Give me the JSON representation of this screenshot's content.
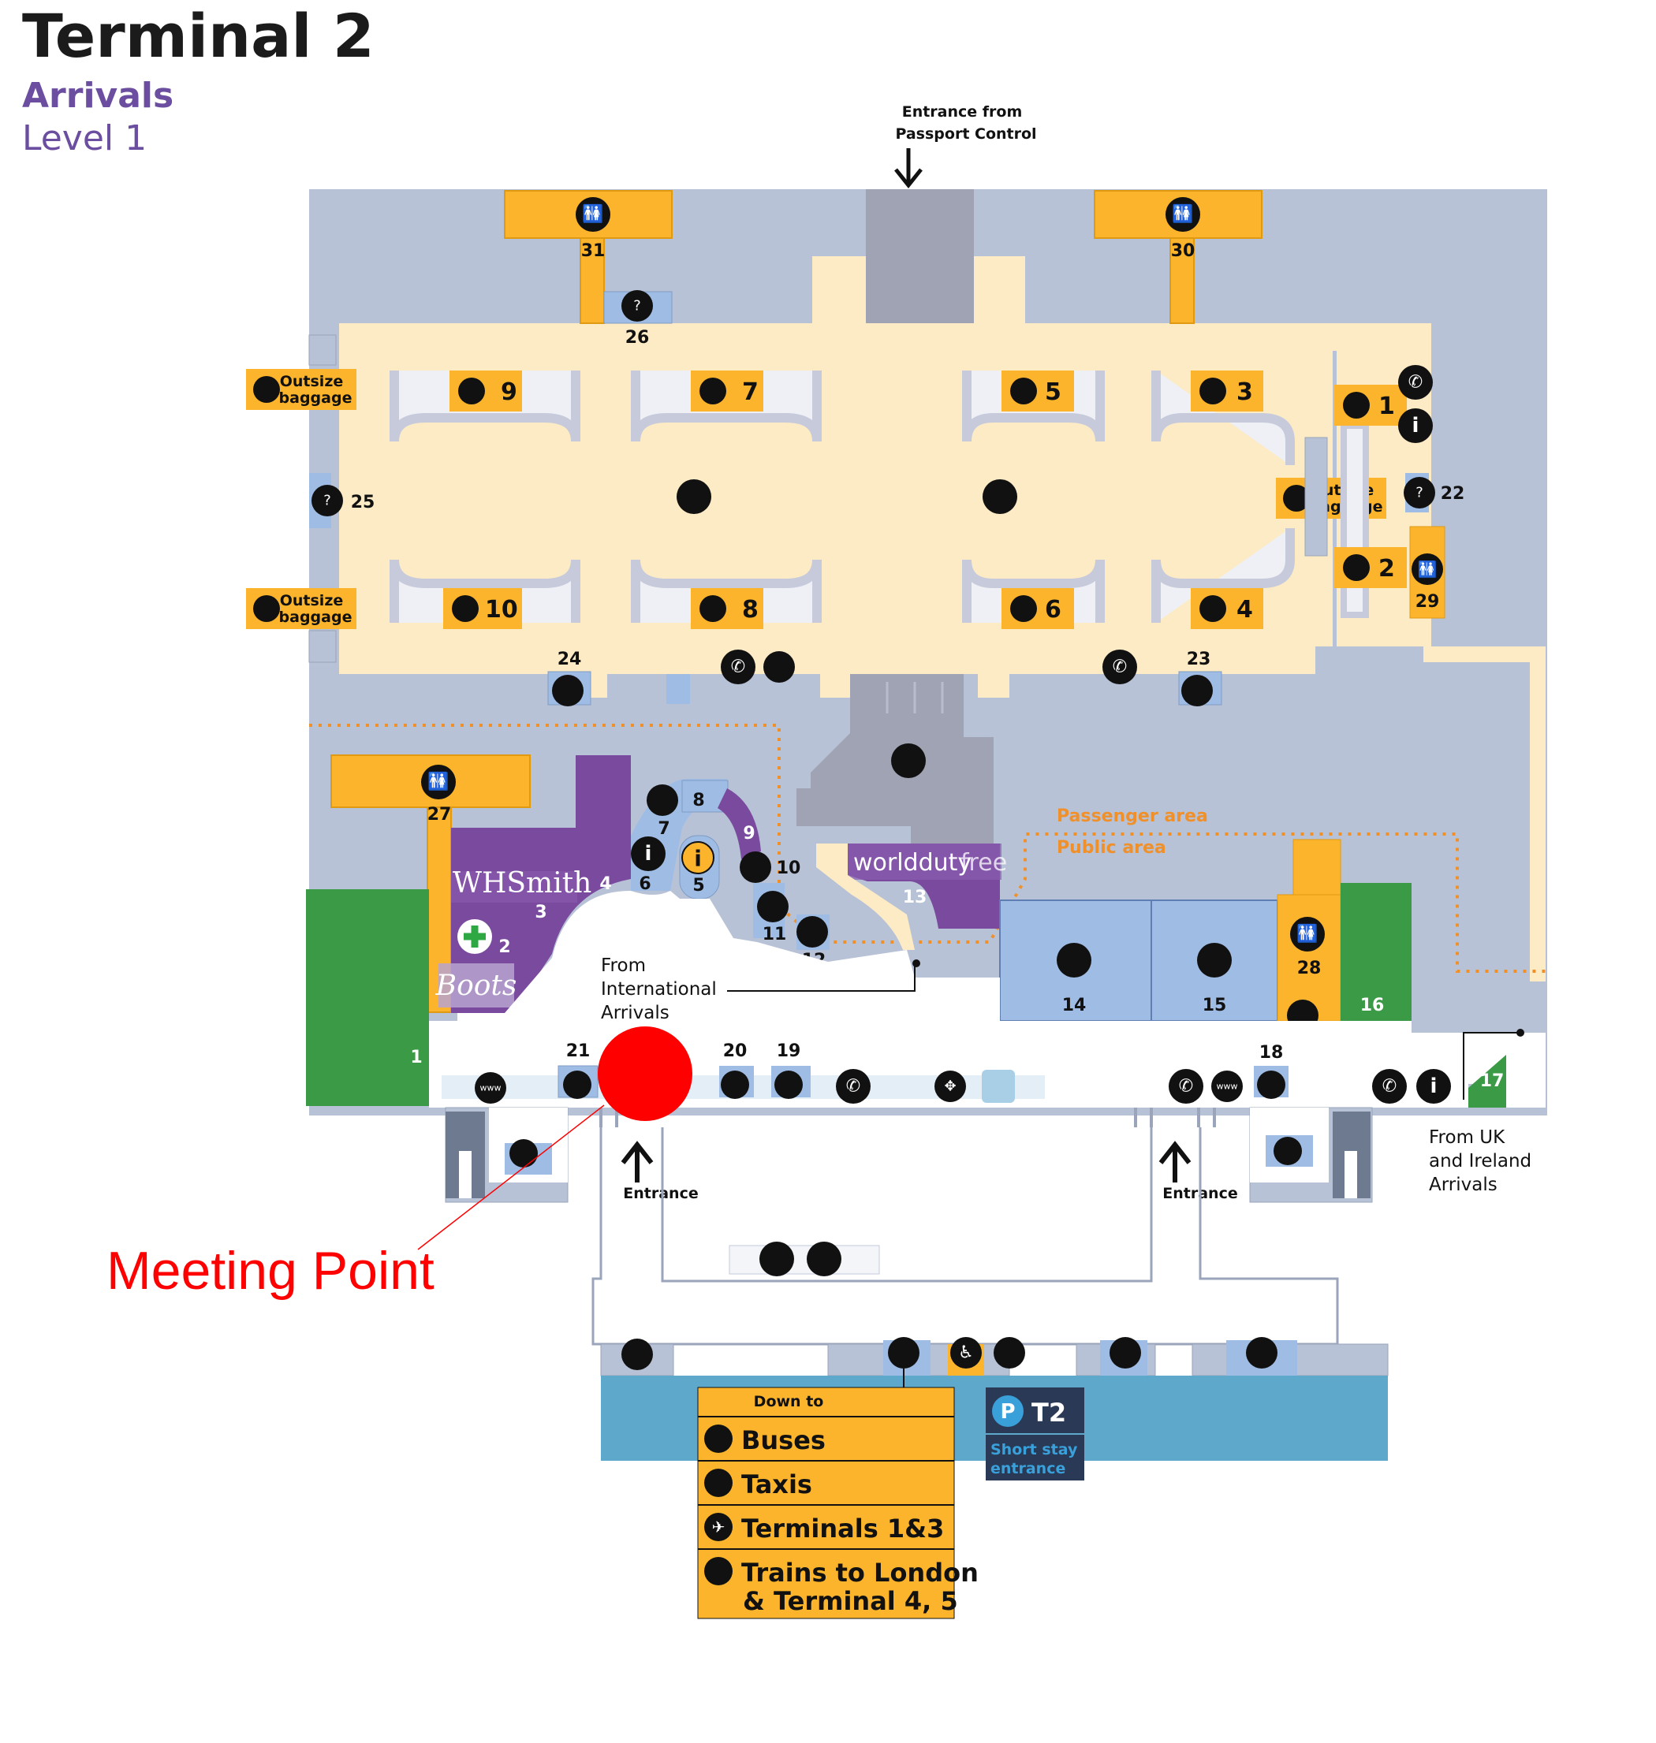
{
  "title": "Terminal 2",
  "subtitle": "Arrivals",
  "level": "Level 1",
  "entrance_top": [
    "Entrance from",
    "Passport Control"
  ],
  "outsize": [
    "Outsize",
    "baggage"
  ],
  "belts": [
    "1",
    "2",
    "3",
    "4",
    "5",
    "6",
    "7",
    "8",
    "9",
    "10"
  ],
  "numbers": {
    "n1": "1",
    "n2": "2",
    "n3": "3",
    "n4": "4",
    "n5": "5",
    "n6": "6",
    "n7": "7",
    "n8": "8",
    "n9": "9",
    "n10": "10",
    "n11": "11",
    "n12": "12",
    "n13": "13",
    "n14": "14",
    "n15": "15",
    "n16": "16",
    "n17": "17",
    "n18": "18",
    "n19": "19",
    "n20": "20",
    "n21": "21",
    "n22": "22",
    "n23": "23",
    "n24": "24",
    "n25": "25",
    "n26": "26",
    "n27": "27",
    "n28": "28",
    "n29": "29",
    "n30": "30",
    "n31": "31"
  },
  "areas": {
    "passenger": "Passenger area",
    "public": "Public area"
  },
  "shops": {
    "whsmith": "WHSmith",
    "wdf_a": "worldduty",
    "wdf_b": "free",
    "boots": "Boots"
  },
  "from_international": [
    "From",
    "International",
    "Arrivals"
  ],
  "from_uk": [
    "From UK",
    "and Ireland",
    "Arrivals"
  ],
  "entrance": "Entrance",
  "meeting_point": "Meeting Point",
  "down_to": "Down to",
  "destinations": [
    "Buses",
    "Taxis",
    "Terminals 1&3",
    "Trains to London",
    "& Terminal 4, 5"
  ],
  "parking": {
    "letter": "P",
    "name": "T2",
    "line1": "Short stay",
    "line2": "entrance"
  },
  "icon_names": [
    "toilets-icon",
    "baggage-icon",
    "phone-icon",
    "info-icon",
    "lost-property-icon",
    "currency-exchange-icon",
    "trolley-icon",
    "pharmacy-icon",
    "internet-icon",
    "lift-icon",
    "escalator-icon",
    "seating-icon",
    "wheelchair-icon",
    "car-hire-icon",
    "mobile-icon",
    "bus-icon",
    "taxi-icon",
    "plane-icon",
    "train-icon"
  ],
  "colors": {
    "building": "#b8c2d6",
    "baggage_hall": "#fcebc5",
    "yellow": "#fbb42b",
    "purple": "#7a4a9e",
    "green": "#3a9a45",
    "blue_room": "#9fbce4",
    "grey_room": "#9fa3b4",
    "roadway": "#5ea8cc",
    "orange_line": "#f0902a",
    "meeting": "#ff0000",
    "navy": "#2a3a56"
  }
}
